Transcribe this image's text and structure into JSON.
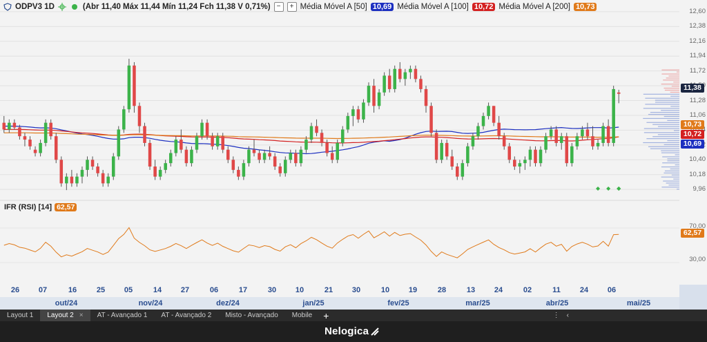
{
  "header": {
    "symbol": "ODPV3 1D",
    "ohlc": "(Abr 11,40 Máx 11,44 Mín 11,24 Fch 11,38 V 0,71%)",
    "ma50_label": "Média Móvel A [50]",
    "ma50_value": "10,69",
    "ma100_label": "Média Móvel A [100]",
    "ma100_value": "10,72",
    "ma200_label": "Média Móvel A [200]",
    "ma200_value": "10,73",
    "minus": "−",
    "plus": "+"
  },
  "colors": {
    "ma50": "#1c2fc0",
    "ma100": "#d32020",
    "ma200": "#e07a1a",
    "up": "#3cb34a",
    "down": "#e04848",
    "rsi": "#e07a1a",
    "date_text": "#2a4d8f"
  },
  "price_axis": [
    "12,60",
    "12,38",
    "12,16",
    "11,94",
    "11,72",
    "11,50",
    "11,28",
    "11,06",
    "10,84",
    "10,62",
    "10,40",
    "10,18",
    "9,96"
  ],
  "price_pills": {
    "last": "11,38",
    "ma200": "10,73",
    "ma100": "10,72",
    "ma50": "10,69"
  },
  "rsi": {
    "label": "IFR (RSI) [14]",
    "value": "62,57",
    "axis": [
      "70,00",
      "30,00"
    ]
  },
  "date_labels": [
    "26",
    "07",
    "16",
    "25",
    "05",
    "14",
    "27",
    "06",
    "17",
    "30",
    "10",
    "21",
    "30",
    "10",
    "19",
    "28",
    "13",
    "24",
    "02",
    "11",
    "24",
    "06"
  ],
  "month_labels": [
    "out/24",
    "nov/24",
    "dez/24",
    "jan/25",
    "fev/25",
    "mar/25",
    "abr/25",
    "mai/25"
  ],
  "tabs": [
    "Layout 1",
    "Layout 2",
    "AT - Avançado 1",
    "AT - Avançado 2",
    "Misto - Avançado",
    "Mobile"
  ],
  "tab_close": "×",
  "tab_add": "+",
  "tab_more": "⋮",
  "tab_collapse": "‹",
  "brand": "Nelogica",
  "chart_data": {
    "type": "candlestick",
    "period": "1D",
    "ylim": [
      9.9,
      12.65
    ],
    "ohlc": [
      [
        10.95,
        11.05,
        10.8,
        10.85
      ],
      [
        10.85,
        11.0,
        10.8,
        10.95
      ],
      [
        10.95,
        11.0,
        10.85,
        10.88
      ],
      [
        10.88,
        10.92,
        10.7,
        10.75
      ],
      [
        10.75,
        10.8,
        10.6,
        10.7
      ],
      [
        10.7,
        10.75,
        10.55,
        10.6
      ],
      [
        10.55,
        10.6,
        10.45,
        10.5
      ],
      [
        10.5,
        10.7,
        10.45,
        10.65
      ],
      [
        10.65,
        11.0,
        10.6,
        10.95
      ],
      [
        10.95,
        11.0,
        10.7,
        10.75
      ],
      [
        10.75,
        10.8,
        10.35,
        10.4
      ],
      [
        10.4,
        10.45,
        10.0,
        10.05
      ],
      [
        10.05,
        10.2,
        9.95,
        10.15
      ],
      [
        10.15,
        10.25,
        10.0,
        10.05
      ],
      [
        10.05,
        10.2,
        10.0,
        10.15
      ],
      [
        10.15,
        10.3,
        10.05,
        10.25
      ],
      [
        10.25,
        10.45,
        10.15,
        10.4
      ],
      [
        10.4,
        10.45,
        10.25,
        10.3
      ],
      [
        10.3,
        10.35,
        10.15,
        10.2
      ],
      [
        10.2,
        10.25,
        10.0,
        10.05
      ],
      [
        10.05,
        10.2,
        10.0,
        10.15
      ],
      [
        10.15,
        10.5,
        10.1,
        10.45
      ],
      [
        10.45,
        10.9,
        10.4,
        10.85
      ],
      [
        10.85,
        11.2,
        10.8,
        11.15
      ],
      [
        11.15,
        11.9,
        11.1,
        11.8
      ],
      [
        11.8,
        11.85,
        11.1,
        11.2
      ],
      [
        11.2,
        11.25,
        10.8,
        10.9
      ],
      [
        10.9,
        10.95,
        10.6,
        10.65
      ],
      [
        10.65,
        10.7,
        10.25,
        10.3
      ],
      [
        10.3,
        10.4,
        10.1,
        10.15
      ],
      [
        10.15,
        10.3,
        10.1,
        10.25
      ],
      [
        10.25,
        10.4,
        10.2,
        10.35
      ],
      [
        10.35,
        10.55,
        10.3,
        10.5
      ],
      [
        10.5,
        10.75,
        10.45,
        10.7
      ],
      [
        10.7,
        10.85,
        10.5,
        10.55
      ],
      [
        10.55,
        10.6,
        10.3,
        10.35
      ],
      [
        10.35,
        10.6,
        10.3,
        10.55
      ],
      [
        10.55,
        10.8,
        10.5,
        10.75
      ],
      [
        10.75,
        11.0,
        10.7,
        10.95
      ],
      [
        10.95,
        11.0,
        10.7,
        10.75
      ],
      [
        10.75,
        10.8,
        10.55,
        10.6
      ],
      [
        10.6,
        10.8,
        10.55,
        10.75
      ],
      [
        10.75,
        10.8,
        10.5,
        10.55
      ],
      [
        10.55,
        10.6,
        10.35,
        10.4
      ],
      [
        10.4,
        10.45,
        10.2,
        10.25
      ],
      [
        10.25,
        10.3,
        10.1,
        10.15
      ],
      [
        10.15,
        10.4,
        10.1,
        10.35
      ],
      [
        10.35,
        10.6,
        10.3,
        10.55
      ],
      [
        10.55,
        10.7,
        10.45,
        10.5
      ],
      [
        10.5,
        10.55,
        10.35,
        10.4
      ],
      [
        10.4,
        10.55,
        10.35,
        10.5
      ],
      [
        10.5,
        10.6,
        10.4,
        10.45
      ],
      [
        10.45,
        10.5,
        10.25,
        10.3
      ],
      [
        10.3,
        10.35,
        10.15,
        10.2
      ],
      [
        10.2,
        10.45,
        10.15,
        10.4
      ],
      [
        10.4,
        10.55,
        10.35,
        10.5
      ],
      [
        10.5,
        10.55,
        10.3,
        10.35
      ],
      [
        10.35,
        10.6,
        10.3,
        10.55
      ],
      [
        10.55,
        10.75,
        10.5,
        10.7
      ],
      [
        10.7,
        10.95,
        10.65,
        10.9
      ],
      [
        10.9,
        11.0,
        10.75,
        10.8
      ],
      [
        10.8,
        10.85,
        10.6,
        10.65
      ],
      [
        10.65,
        10.7,
        10.45,
        10.5
      ],
      [
        10.5,
        10.6,
        10.35,
        10.4
      ],
      [
        10.4,
        10.7,
        10.35,
        10.65
      ],
      [
        10.65,
        10.9,
        10.6,
        10.85
      ],
      [
        10.85,
        11.1,
        10.8,
        11.05
      ],
      [
        11.05,
        11.2,
        10.9,
        11.15
      ],
      [
        11.15,
        11.2,
        10.95,
        11.0
      ],
      [
        11.0,
        11.3,
        10.95,
        11.25
      ],
      [
        11.25,
        11.55,
        11.2,
        11.5
      ],
      [
        11.5,
        11.6,
        11.1,
        11.2
      ],
      [
        11.2,
        11.45,
        11.15,
        11.4
      ],
      [
        11.4,
        11.7,
        11.35,
        11.65
      ],
      [
        11.65,
        11.75,
        11.4,
        11.45
      ],
      [
        11.45,
        11.8,
        11.4,
        11.75
      ],
      [
        11.75,
        11.85,
        11.55,
        11.6
      ],
      [
        11.6,
        11.75,
        11.5,
        11.7
      ],
      [
        11.7,
        11.8,
        11.6,
        11.75
      ],
      [
        11.75,
        11.8,
        11.55,
        11.6
      ],
      [
        11.6,
        11.65,
        11.4,
        11.45
      ],
      [
        11.45,
        11.5,
        11.1,
        11.2
      ],
      [
        11.2,
        11.25,
        10.75,
        10.8
      ],
      [
        10.8,
        10.85,
        10.35,
        10.4
      ],
      [
        10.4,
        10.7,
        10.35,
        10.65
      ],
      [
        10.65,
        10.7,
        10.4,
        10.45
      ],
      [
        10.45,
        10.55,
        10.25,
        10.3
      ],
      [
        10.3,
        10.35,
        10.1,
        10.15
      ],
      [
        10.15,
        10.4,
        10.1,
        10.35
      ],
      [
        10.35,
        10.65,
        10.3,
        10.6
      ],
      [
        10.6,
        10.8,
        10.55,
        10.75
      ],
      [
        10.75,
        10.95,
        10.7,
        10.9
      ],
      [
        10.9,
        11.1,
        10.85,
        11.05
      ],
      [
        11.05,
        11.25,
        11.0,
        11.2
      ],
      [
        11.2,
        11.2,
        10.9,
        10.95
      ],
      [
        10.95,
        11.05,
        10.7,
        10.75
      ],
      [
        10.75,
        10.8,
        10.55,
        10.6
      ],
      [
        10.6,
        10.65,
        10.35,
        10.4
      ],
      [
        10.4,
        10.45,
        10.25,
        10.3
      ],
      [
        10.3,
        10.4,
        10.2,
        10.35
      ],
      [
        10.35,
        10.45,
        10.25,
        10.4
      ],
      [
        10.4,
        10.6,
        10.3,
        10.55
      ],
      [
        10.55,
        10.6,
        10.3,
        10.35
      ],
      [
        10.35,
        10.6,
        10.3,
        10.55
      ],
      [
        10.55,
        10.8,
        10.5,
        10.75
      ],
      [
        10.75,
        10.9,
        10.7,
        10.85
      ],
      [
        10.85,
        10.9,
        10.6,
        10.65
      ],
      [
        10.65,
        10.8,
        10.55,
        10.75
      ],
      [
        10.75,
        10.8,
        10.3,
        10.35
      ],
      [
        10.35,
        10.65,
        10.3,
        10.6
      ],
      [
        10.6,
        10.8,
        10.55,
        10.75
      ],
      [
        10.75,
        10.9,
        10.7,
        10.85
      ],
      [
        10.85,
        10.95,
        10.7,
        10.75
      ],
      [
        10.75,
        10.9,
        10.55,
        10.6
      ],
      [
        10.6,
        10.7,
        10.55,
        10.65
      ],
      [
        10.65,
        10.95,
        10.6,
        10.9
      ],
      [
        10.9,
        11.0,
        10.6,
        10.65
      ],
      [
        10.65,
        11.5,
        10.6,
        11.45
      ],
      [
        11.4,
        11.44,
        11.24,
        11.38
      ]
    ],
    "ma50_last": 10.69,
    "ma100_last": 10.72,
    "ma200_last": 10.73,
    "rsi_ylim": [
      10,
      90
    ],
    "rsi_last": 62.57
  }
}
